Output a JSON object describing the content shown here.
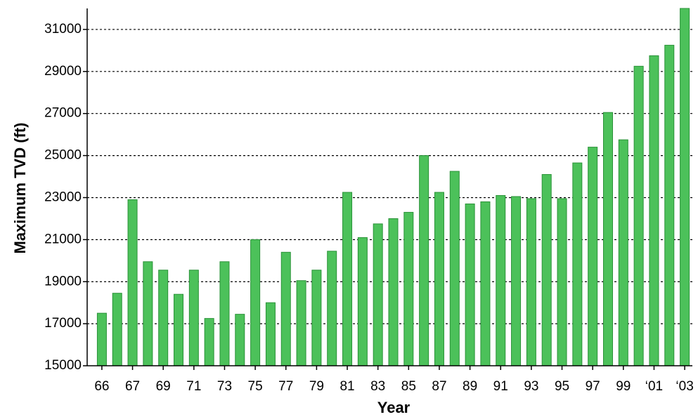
{
  "chart_data": {
    "type": "bar",
    "y_label": "Maximum TVD (ft)",
    "x_label": "Year",
    "categories": [
      "66",
      null,
      "67",
      null,
      "69",
      null,
      "71",
      null,
      "73",
      null,
      "75",
      null,
      "77",
      null,
      "79",
      null,
      "81",
      null,
      "83",
      null,
      "85",
      null,
      "87",
      null,
      "89",
      null,
      "91",
      null,
      "93",
      null,
      "95",
      null,
      "97",
      null,
      "99",
      null,
      "‘01",
      null,
      "‘03"
    ],
    "values": [
      17500,
      18450,
      22900,
      19950,
      19550,
      18400,
      19550,
      17250,
      19950,
      17450,
      21000,
      18000,
      20400,
      19050,
      19550,
      20450,
      23250,
      21100,
      21750,
      22000,
      22300,
      25000,
      23250,
      24250,
      22700,
      22800,
      23100,
      23050,
      22950,
      24100,
      22950,
      24650,
      25400,
      27050,
      25750,
      29250,
      29750,
      30250,
      32000
    ],
    "color": "#4cc15a",
    "ylim": [
      15000,
      32000
    ],
    "yticks": [
      15000,
      17000,
      19000,
      21000,
      23000,
      25000,
      27000,
      29000,
      31000
    ],
    "grid": true
  }
}
